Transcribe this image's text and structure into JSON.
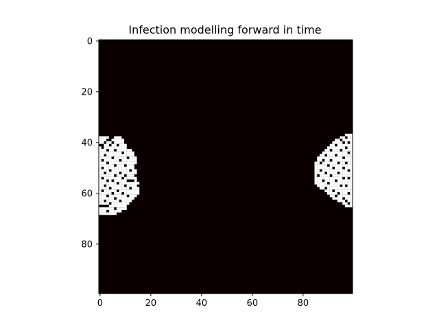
{
  "chart_data": {
    "type": "heatmap",
    "title": "Infection modelling forward in time",
    "xlabel": "",
    "ylabel": "",
    "grid_size": 100,
    "xlim": [
      -0.5,
      99.5
    ],
    "ylim": [
      99.5,
      -0.5
    ],
    "x_ticks": [
      0,
      20,
      40,
      60,
      80
    ],
    "y_ticks": [
      0,
      20,
      40,
      60,
      80
    ],
    "colormap": {
      "background": "#0b0000",
      "infected": "#ffffff"
    },
    "grid": false,
    "legend": "none",
    "clusters": [
      {
        "name": "left-cluster",
        "rows": [
          [
            38,
            0,
            3
          ],
          [
            38,
            6,
            8
          ],
          [
            39,
            0,
            2
          ],
          [
            39,
            5,
            9
          ],
          [
            40,
            0,
            9
          ],
          [
            41,
            2,
            10
          ],
          [
            42,
            0,
            10
          ],
          [
            43,
            0,
            12
          ],
          [
            44,
            0,
            13
          ],
          [
            45,
            0,
            13
          ],
          [
            46,
            0,
            14
          ],
          [
            47,
            0,
            14
          ],
          [
            48,
            0,
            14
          ],
          [
            49,
            0,
            13
          ],
          [
            50,
            0,
            13
          ],
          [
            51,
            0,
            14
          ],
          [
            52,
            0,
            14
          ],
          [
            53,
            0,
            13
          ],
          [
            54,
            0,
            14
          ],
          [
            55,
            0,
            14
          ],
          [
            56,
            0,
            15
          ],
          [
            57,
            0,
            14
          ],
          [
            58,
            0,
            15
          ],
          [
            59,
            0,
            15
          ],
          [
            60,
            0,
            15
          ],
          [
            61,
            0,
            14
          ],
          [
            62,
            0,
            13
          ],
          [
            63,
            0,
            12
          ],
          [
            64,
            0,
            11
          ],
          [
            65,
            0,
            10
          ],
          [
            66,
            0,
            10
          ],
          [
            67,
            0,
            8
          ],
          [
            68,
            0,
            6
          ]
        ],
        "holes": [
          [
            40,
            2
          ],
          [
            40,
            5
          ],
          [
            41,
            4
          ],
          [
            41,
            7
          ],
          [
            42,
            1
          ],
          [
            43,
            3
          ],
          [
            43,
            6
          ],
          [
            44,
            9
          ],
          [
            45,
            2
          ],
          [
            46,
            5
          ],
          [
            46,
            11
          ],
          [
            47,
            1
          ],
          [
            47,
            8
          ],
          [
            48,
            3
          ],
          [
            49,
            6
          ],
          [
            49,
            10
          ],
          [
            50,
            1
          ],
          [
            51,
            4
          ],
          [
            51,
            12
          ],
          [
            52,
            2
          ],
          [
            52,
            8
          ],
          [
            53,
            6
          ],
          [
            53,
            10
          ],
          [
            54,
            1
          ],
          [
            54,
            9
          ],
          [
            55,
            3
          ],
          [
            55,
            5
          ],
          [
            55,
            11
          ],
          [
            55,
            12
          ],
          [
            55,
            13
          ],
          [
            56,
            7
          ],
          [
            57,
            2
          ],
          [
            57,
            10
          ],
          [
            58,
            4
          ],
          [
            58,
            12
          ],
          [
            59,
            1
          ],
          [
            59,
            7
          ],
          [
            60,
            5
          ],
          [
            60,
            9
          ],
          [
            61,
            3
          ],
          [
            61,
            11
          ],
          [
            62,
            6
          ],
          [
            63,
            2
          ],
          [
            63,
            8
          ],
          [
            64,
            4
          ],
          [
            65,
            0
          ],
          [
            65,
            1
          ],
          [
            65,
            2
          ],
          [
            65,
            3
          ],
          [
            66,
            6
          ],
          [
            67,
            3
          ]
        ]
      },
      {
        "name": "right-cluster",
        "rows": [
          [
            37,
            97,
            99
          ],
          [
            38,
            95,
            99
          ],
          [
            39,
            93,
            99
          ],
          [
            40,
            92,
            99
          ],
          [
            41,
            91,
            99
          ],
          [
            42,
            90,
            99
          ],
          [
            43,
            89,
            99
          ],
          [
            44,
            88,
            99
          ],
          [
            45,
            87,
            99
          ],
          [
            46,
            86,
            99
          ],
          [
            47,
            86,
            99
          ],
          [
            48,
            85,
            99
          ],
          [
            49,
            85,
            99
          ],
          [
            50,
            85,
            99
          ],
          [
            51,
            85,
            99
          ],
          [
            52,
            85,
            99
          ],
          [
            53,
            85,
            99
          ],
          [
            54,
            85,
            99
          ],
          [
            55,
            85,
            99
          ],
          [
            56,
            85,
            99
          ],
          [
            57,
            86,
            99
          ],
          [
            58,
            87,
            99
          ],
          [
            59,
            89,
            99
          ],
          [
            60,
            90,
            99
          ],
          [
            61,
            91,
            99
          ],
          [
            62,
            92,
            99
          ],
          [
            63,
            94,
            99
          ],
          [
            64,
            96,
            99
          ],
          [
            65,
            97,
            99
          ]
        ],
        "holes": [
          [
            38,
            97
          ],
          [
            39,
            95
          ],
          [
            40,
            96
          ],
          [
            40,
            98
          ],
          [
            41,
            93
          ],
          [
            42,
            97
          ],
          [
            43,
            91
          ],
          [
            43,
            95
          ],
          [
            44,
            98
          ],
          [
            45,
            89
          ],
          [
            45,
            93
          ],
          [
            46,
            96
          ],
          [
            47,
            88
          ],
          [
            47,
            91
          ],
          [
            48,
            87
          ],
          [
            48,
            94
          ],
          [
            48,
            97
          ],
          [
            49,
            90
          ],
          [
            50,
            92
          ],
          [
            50,
            96
          ],
          [
            51,
            87
          ],
          [
            51,
            98
          ],
          [
            52,
            89
          ],
          [
            52,
            94
          ],
          [
            53,
            86
          ],
          [
            53,
            91
          ],
          [
            54,
            96
          ],
          [
            54,
            98
          ],
          [
            55,
            88
          ],
          [
            55,
            93
          ],
          [
            56,
            90
          ],
          [
            57,
            95
          ],
          [
            57,
            97
          ],
          [
            58,
            89
          ],
          [
            59,
            92
          ],
          [
            60,
            94
          ],
          [
            60,
            98
          ],
          [
            61,
            93
          ],
          [
            62,
            96
          ],
          [
            63,
            97
          ],
          [
            64,
            98
          ]
        ]
      }
    ]
  }
}
